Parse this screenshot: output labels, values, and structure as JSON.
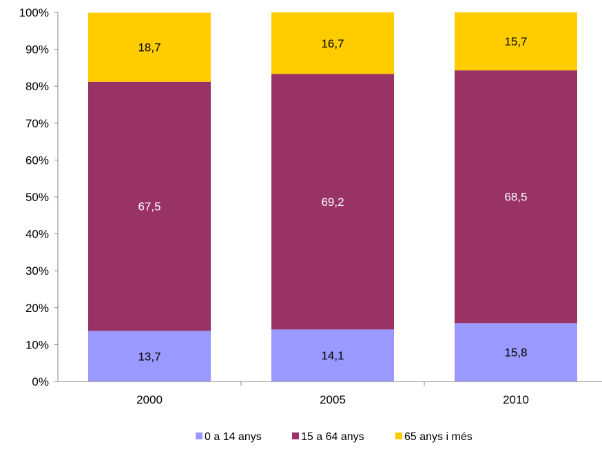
{
  "chart_data": {
    "type": "bar",
    "stacked": true,
    "percent_stacked": true,
    "categories": [
      "2000",
      "2005",
      "2010"
    ],
    "series": [
      {
        "name": "0 a 14 anys",
        "color": "#9999ff",
        "label_color": "#000000",
        "values": [
          13.7,
          14.1,
          15.8
        ],
        "labels": [
          "13,7",
          "14,1",
          "15,8"
        ]
      },
      {
        "name": "15 a 64 anys",
        "color": "#993366",
        "label_color": "#ffffff",
        "values": [
          67.5,
          69.2,
          68.5
        ],
        "labels": [
          "67,5",
          "69,2",
          "68,5"
        ]
      },
      {
        "name": "65 anys i més",
        "color": "#ffcc00",
        "label_color": "#000000",
        "values": [
          18.7,
          16.7,
          15.7
        ],
        "labels": [
          "18,7",
          "16,7",
          "15,7"
        ]
      }
    ],
    "ylim": [
      0,
      100
    ],
    "y_ticks": [
      "0%",
      "10%",
      "20%",
      "30%",
      "40%",
      "50%",
      "60%",
      "70%",
      "80%",
      "90%",
      "100%"
    ],
    "grid": false,
    "legend_position": "bottom"
  }
}
